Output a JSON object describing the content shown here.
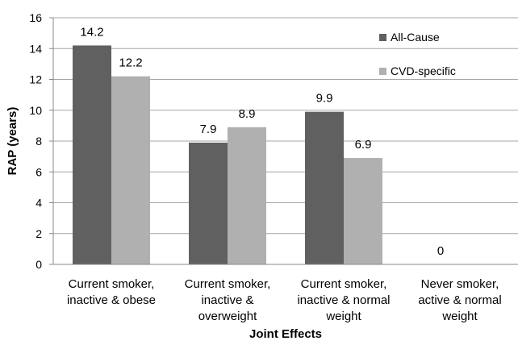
{
  "chart_data": {
    "type": "bar",
    "categories": [
      [
        "Current smoker,",
        "inactive & obese"
      ],
      [
        "Current smoker,",
        "inactive &",
        "overweight"
      ],
      [
        "Current smoker,",
        "inactive & normal",
        "weight"
      ],
      [
        "Never smoker,",
        "active & normal",
        "weight"
      ]
    ],
    "series": [
      {
        "name": "All-Cause",
        "values": [
          14.2,
          7.9,
          9.9,
          0
        ],
        "color": "#606060"
      },
      {
        "name": "CVD-specific",
        "values": [
          12.2,
          8.9,
          6.9,
          null
        ],
        "color": "#b0b0b0"
      }
    ],
    "data_labels": [
      [
        "14.2",
        "7.9",
        "9.9",
        "0"
      ],
      [
        "12.2",
        "8.9",
        "6.9",
        ""
      ]
    ],
    "xlabel": "Joint Effects",
    "ylabel": "RAP (years)",
    "ylim": [
      0,
      16
    ],
    "yticks": [
      0,
      2,
      4,
      6,
      8,
      10,
      12,
      14,
      16
    ],
    "grid": true,
    "legend_position": "top-right"
  }
}
